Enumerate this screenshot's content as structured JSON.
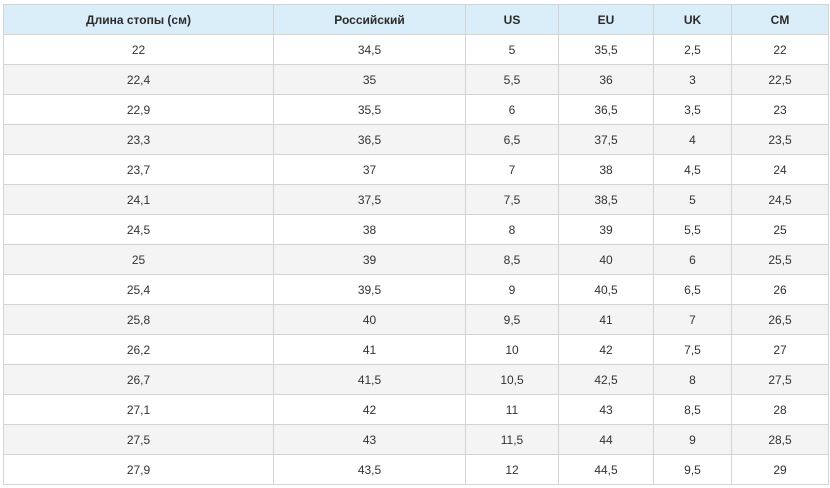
{
  "table": {
    "headers": [
      "Длина стопы (см)",
      "Российский",
      "US",
      "EU",
      "UK",
      "CM"
    ],
    "rows": [
      [
        "22",
        "34,5",
        "5",
        "35,5",
        "2,5",
        "22"
      ],
      [
        "22,4",
        "35",
        "5,5",
        "36",
        "3",
        "22,5"
      ],
      [
        "22,9",
        "35,5",
        "6",
        "36,5",
        "3,5",
        "23"
      ],
      [
        "23,3",
        "36,5",
        "6,5",
        "37,5",
        "4",
        "23,5"
      ],
      [
        "23,7",
        "37",
        "7",
        "38",
        "4,5",
        "24"
      ],
      [
        "24,1",
        "37,5",
        "7,5",
        "38,5",
        "5",
        "24,5"
      ],
      [
        "24,5",
        "38",
        "8",
        "39",
        "5,5",
        "25"
      ],
      [
        "25",
        "39",
        "8,5",
        "40",
        "6",
        "25,5"
      ],
      [
        "25,4",
        "39,5",
        "9",
        "40,5",
        "6,5",
        "26"
      ],
      [
        "25,8",
        "40",
        "9,5",
        "41",
        "7",
        "26,5"
      ],
      [
        "26,2",
        "41",
        "10",
        "42",
        "7,5",
        "27"
      ],
      [
        "26,7",
        "41,5",
        "10,5",
        "42,5",
        "8",
        "27,5"
      ],
      [
        "27,1",
        "42",
        "11",
        "43",
        "8,5",
        "28"
      ],
      [
        "27,5",
        "43",
        "11,5",
        "44",
        "9",
        "28,5"
      ],
      [
        "27,9",
        "43,5",
        "12",
        "44,5",
        "9,5",
        "29"
      ]
    ]
  },
  "colors": {
    "header_bg": "#daeef9",
    "row_alt_bg": "#f4f4f4",
    "border": "#d4d4d4",
    "text": "#333333"
  }
}
